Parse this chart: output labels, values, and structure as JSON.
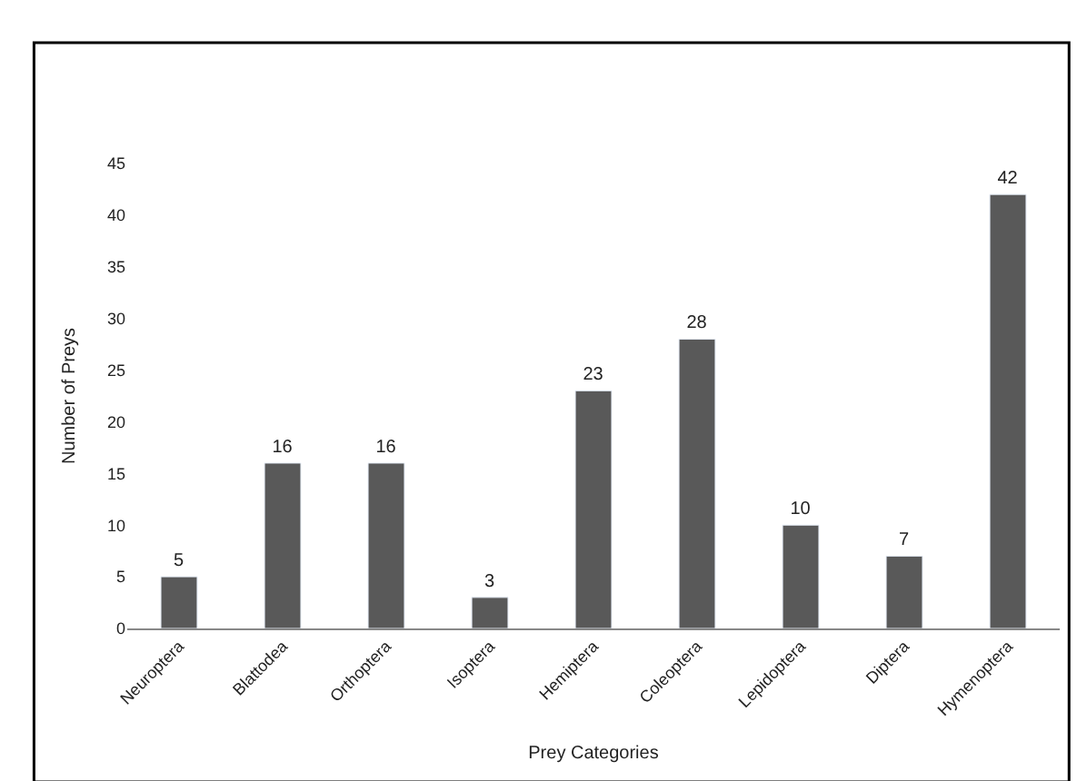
{
  "chart_data": {
    "type": "bar",
    "categories": [
      "Neuroptera",
      "Blattodea",
      "Orthoptera",
      "Isoptera",
      "Hemiptera",
      "Coleoptera",
      "Lepidoptera",
      "Diptera",
      "Hymenoptera"
    ],
    "values": [
      5,
      16,
      16,
      3,
      23,
      28,
      10,
      7,
      42
    ],
    "color": "#595959",
    "xlabel": "Prey Categories",
    "ylabel": "Number of Preys",
    "ylim": [
      0,
      45
    ],
    "yticks": [
      0,
      5,
      10,
      15,
      20,
      25,
      30,
      35,
      40,
      45
    ],
    "data_labels": true
  }
}
